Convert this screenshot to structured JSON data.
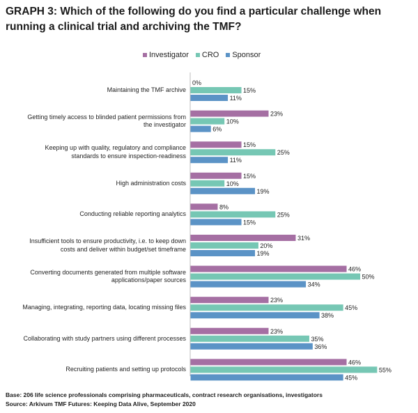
{
  "title": "GRAPH 3: Which of the following do you find a particular challenge when running a clinical trial and archiving the TMF?",
  "colors": {
    "investigator": "#a56fa3",
    "cro": "#76c7b4",
    "sponsor": "#5b93c6"
  },
  "chart_data": {
    "type": "bar",
    "orientation": "horizontal",
    "title": "Which of the following do you find a particular challenge when running a clinical trial and archiving the TMF?",
    "xlabel": "",
    "ylabel": "",
    "unit": "%",
    "xlim": [
      0,
      60
    ],
    "legend_position": "top",
    "categories": [
      "Maintaining the TMF archive",
      "Getting timely access to blinded patient permissions from the investigator",
      "Keeping up with quality, regulatory and compliance standards to ensure inspection-readiness",
      "High administration costs",
      "Conducting reliable reporting analytics",
      "Insufficient tools to ensure productivity, i.e. to keep down costs and deliver within budget/set timeframe",
      "Converting documents generated from multiple software applications/paper sources",
      "Managing, integrating, reporting data, locating missing files",
      "Collaborating with study partners using different processes",
      "Recruiting patients and setting up protocols"
    ],
    "category_lines": [
      [
        "Maintaining the TMF archive"
      ],
      [
        "Getting timely access to blinded patient permissions from",
        "the investigator"
      ],
      [
        "Keeping up with quality, regulatory and compliance",
        "standards to ensure inspection-readiness"
      ],
      [
        "High administration costs"
      ],
      [
        "Conducting reliable reporting analytics"
      ],
      [
        "Insufficient tools to ensure productivity, i.e. to keep down",
        "costs and deliver within budget/set timeframe"
      ],
      [
        "Converting documents generated from multiple software",
        "applications/paper sources"
      ],
      [
        "Managing, integrating, reporting data, locating missing files"
      ],
      [
        "Collaborating with study partners using different processes"
      ],
      [
        "Recruiting patients and setting up protocols"
      ]
    ],
    "series": [
      {
        "name": "Investigator",
        "key": "investigator",
        "values": [
          0,
          23,
          15,
          15,
          8,
          31,
          46,
          23,
          23,
          46
        ]
      },
      {
        "name": "CRO",
        "key": "cro",
        "values": [
          15,
          10,
          25,
          10,
          25,
          20,
          50,
          45,
          35,
          55
        ]
      },
      {
        "name": "Sponsor",
        "key": "sponsor",
        "values": [
          11,
          6,
          11,
          19,
          15,
          19,
          34,
          38,
          36,
          45
        ]
      }
    ]
  },
  "footnotes": {
    "base": "Base: 206 life science professionals comprising pharmaceuticals, contract research organisations, investigators",
    "source": "Source: Arkivum TMF Futures: Keeping Data Alive, September 2020"
  }
}
